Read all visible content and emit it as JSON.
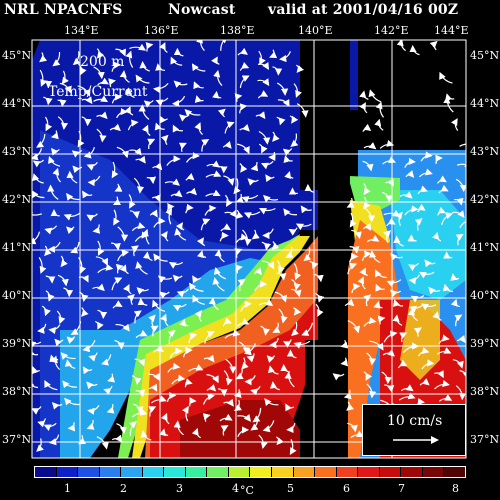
{
  "header": {
    "title": "NRL NPACNFS",
    "product": "Nowcast",
    "valid": "valid at 2001/04/16 00Z"
  },
  "overlay": {
    "depth": "200 m",
    "field": "Temp/Current"
  },
  "axes": {
    "lon_labels": [
      "134°E",
      "136°E",
      "138°E",
      "140°E",
      "142°E",
      "144°E"
    ],
    "lat_labels": [
      "45°N",
      "44°N",
      "43°N",
      "42°N",
      "41°N",
      "40°N",
      "39°N",
      "38°N",
      "37°N"
    ]
  },
  "scale": {
    "label": "10 cm/s"
  },
  "colorbar": {
    "ticks": [
      "1",
      "2",
      "3",
      "4",
      "5",
      "6",
      "7",
      "8"
    ],
    "unit": "°C",
    "colors": [
      "#0a0a8c",
      "#1020c8",
      "#1e50e6",
      "#2a7ef0",
      "#2aa4f0",
      "#2ad0f0",
      "#2ae8d8",
      "#36f0a0",
      "#70f060",
      "#b8f030",
      "#f0f020",
      "#f8d020",
      "#f8a020",
      "#f87020",
      "#f04020",
      "#e01818",
      "#c80c0c",
      "#a00808",
      "#780606",
      "#500404"
    ]
  }
}
